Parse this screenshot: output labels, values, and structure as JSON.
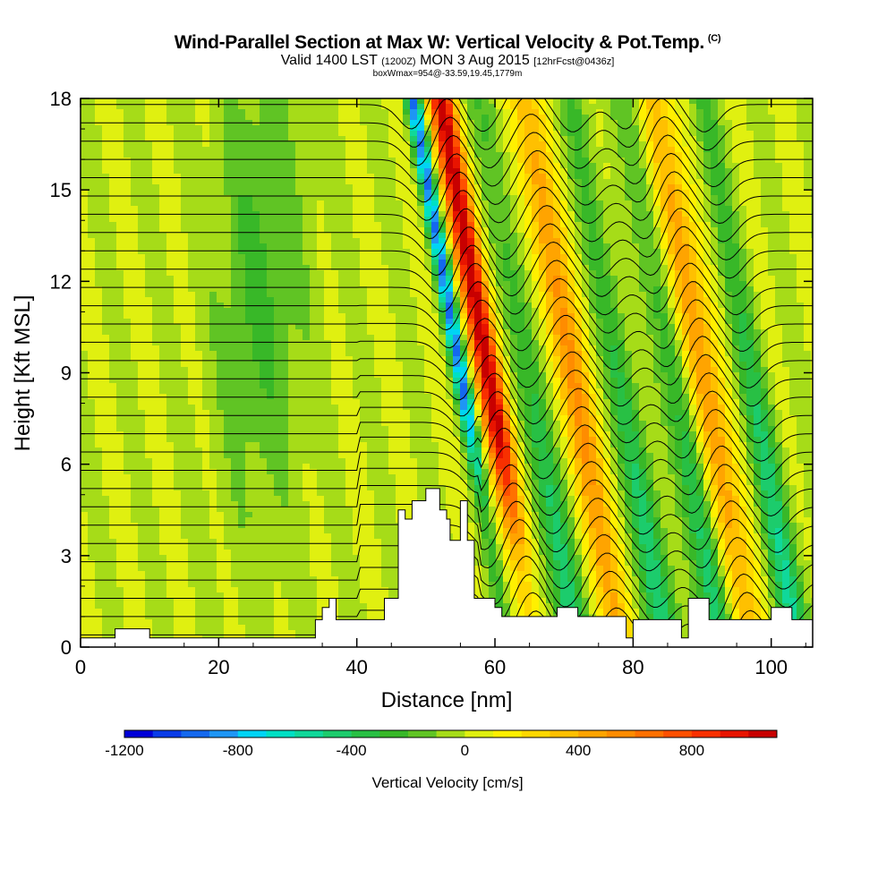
{
  "title": "Wind-Parallel Section at Max W: Vertical Velocity & Pot.Temp.",
  "title_mark": "(C)",
  "subtitle_main": "Valid 1400 LST",
  "subtitle_z": "(1200Z)",
  "subtitle_date": "MON 3 Aug 2015",
  "subtitle_fcst": "[12hrFcst@0436z]",
  "subsubtitle": "boxWmax=954@-33.59,19.45,1779m",
  "chart_data": {
    "type": "heatmap",
    "xlabel": "Distance [nm]",
    "ylabel": "Height [Kft MSL]",
    "xlim": [
      0,
      106
    ],
    "ylim": [
      0,
      18
    ],
    "x_ticks": [
      "0",
      "20",
      "40",
      "60",
      "80",
      "100"
    ],
    "y_ticks": [
      "0",
      "3",
      "6",
      "9",
      "12",
      "15",
      "18"
    ],
    "colorbar": {
      "label": "Vertical Velocity [cm/s]",
      "range": [
        -1200,
        1100
      ],
      "step": 100,
      "tick_labels": [
        "-1200",
        "-800",
        "-400",
        "0",
        "400",
        "800"
      ],
      "colors": [
        "#0000d8",
        "#0a3ce8",
        "#1468ee",
        "#1e96f4",
        "#00d4f4",
        "#00e0c4",
        "#10d89a",
        "#1ccc6c",
        "#28c044",
        "#38b828",
        "#60c424",
        "#a6dc18",
        "#e0f010",
        "#fff000",
        "#ffd800",
        "#ffc000",
        "#ffa400",
        "#ff8c00",
        "#ff7000",
        "#ff5000",
        "#f83000",
        "#e81400",
        "#c80000"
      ]
    },
    "updraft_bands_x": [
      59,
      71,
      90
    ],
    "downdraft_bands_x": [
      55,
      65,
      78,
      86,
      97
    ],
    "terrain": [
      [
        0,
        0.3
      ],
      [
        5,
        0.3
      ],
      [
        5,
        0.6
      ],
      [
        10,
        0.6
      ],
      [
        10,
        0.3
      ],
      [
        34,
        0.3
      ],
      [
        34,
        0.9
      ],
      [
        35,
        0.9
      ],
      [
        35,
        1.3
      ],
      [
        36,
        1.3
      ],
      [
        36,
        1.6
      ],
      [
        37,
        1.6
      ],
      [
        37,
        0.9
      ],
      [
        40,
        0.9
      ],
      [
        40,
        0.9
      ],
      [
        44,
        0.9
      ],
      [
        44,
        1.6
      ],
      [
        46,
        1.6
      ],
      [
        46,
        4.5
      ],
      [
        47,
        4.5
      ],
      [
        47,
        4.2
      ],
      [
        48,
        4.2
      ],
      [
        48,
        4.8
      ],
      [
        50,
        4.8
      ],
      [
        50,
        5.2
      ],
      [
        52,
        5.2
      ],
      [
        52,
        4.5
      ],
      [
        53,
        4.5
      ],
      [
        53,
        4.2
      ],
      [
        53.5,
        4.2
      ],
      [
        53.5,
        3.5
      ],
      [
        55,
        3.5
      ],
      [
        55,
        4.8
      ],
      [
        56,
        4.8
      ],
      [
        56,
        3.5
      ],
      [
        57,
        3.5
      ],
      [
        57,
        1.6
      ],
      [
        60,
        1.6
      ],
      [
        60,
        1.3
      ],
      [
        61,
        1.3
      ],
      [
        61,
        1.0
      ],
      [
        69,
        1.0
      ],
      [
        69,
        1.3
      ],
      [
        72,
        1.3
      ],
      [
        72,
        1.0
      ],
      [
        79,
        1.0
      ],
      [
        79,
        0.3
      ],
      [
        80,
        0.3
      ],
      [
        80,
        0.9
      ],
      [
        87,
        0.9
      ],
      [
        87,
        0.3
      ],
      [
        88,
        0.3
      ],
      [
        88,
        1.6
      ],
      [
        91,
        1.6
      ],
      [
        91,
        0.9
      ],
      [
        100,
        0.9
      ],
      [
        100,
        1.3
      ],
      [
        103,
        1.3
      ],
      [
        103,
        0.9
      ],
      [
        106,
        0.9
      ],
      [
        106,
        0
      ]
    ]
  }
}
